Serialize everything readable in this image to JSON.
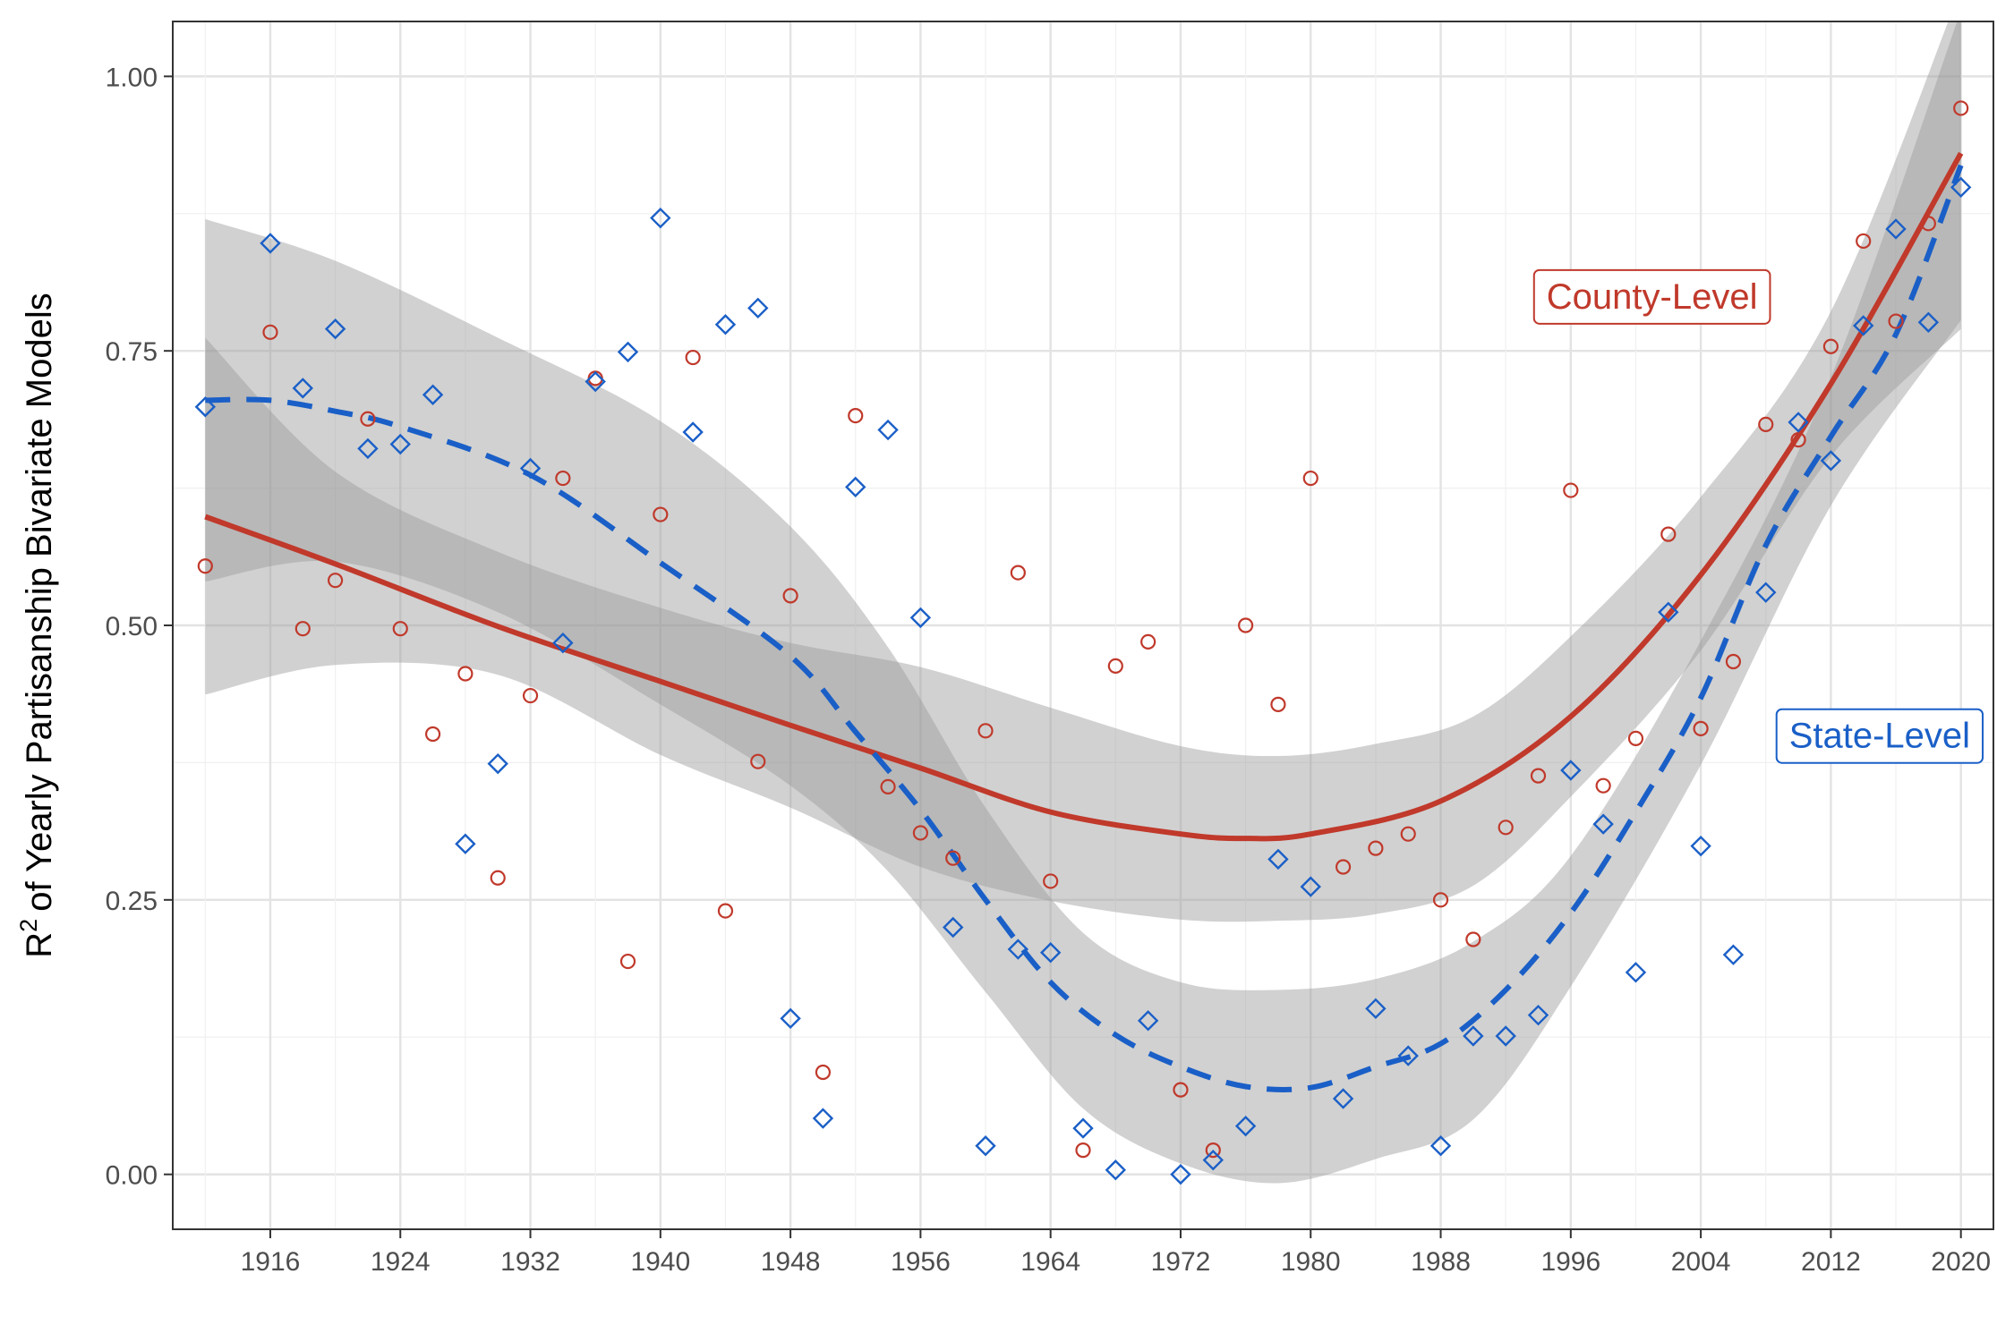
{
  "chart_data": {
    "type": "scatter",
    "title": "",
    "xlabel": "",
    "ylabel": "of Yearly Partisanship Bivariate Models",
    "ylabel_prefix": "R",
    "ylabel_superscript": "2",
    "xlim": [
      1910,
      2022
    ],
    "ylim": [
      -0.05,
      1.05
    ],
    "x_ticks": [
      1916,
      1924,
      1932,
      1940,
      1948,
      1956,
      1964,
      1972,
      1980,
      1988,
      1996,
      2004,
      2012,
      2020
    ],
    "x_tick_labels": [
      "1916",
      "1924",
      "1932",
      "1940",
      "1948",
      "1956",
      "1964",
      "1972",
      "1980",
      "1988",
      "1996",
      "2004",
      "2012",
      "2020"
    ],
    "y_ticks": [
      0,
      0.25,
      0.5,
      0.75,
      1.0
    ],
    "y_tick_labels": [
      "0.00",
      "0.25",
      "0.50",
      "0.75",
      "1.00"
    ],
    "grid": true,
    "legend": "none",
    "annotations": [
      {
        "text": "County-Level",
        "x": 2001,
        "y": 0.8,
        "color": "#c0392b"
      },
      {
        "text": "State-Level",
        "x": 2015,
        "y": 0.4,
        "color": "#1a5fc7"
      }
    ],
    "series": [
      {
        "id": "county",
        "color": "#c0392b",
        "marker": "circle",
        "line_style": "solid",
        "points": [
          [
            1912,
            0.554
          ],
          [
            1916,
            0.767
          ],
          [
            1918,
            0.497
          ],
          [
            1920,
            0.541
          ],
          [
            1922,
            0.688
          ],
          [
            1924,
            0.497
          ],
          [
            1926,
            0.401
          ],
          [
            1928,
            0.456
          ],
          [
            1930,
            0.27
          ],
          [
            1932,
            0.436
          ],
          [
            1934,
            0.634
          ],
          [
            1936,
            0.725
          ],
          [
            1938,
            0.194
          ],
          [
            1940,
            0.601
          ],
          [
            1942,
            0.744
          ],
          [
            1944,
            0.24
          ],
          [
            1946,
            0.376
          ],
          [
            1948,
            0.527
          ],
          [
            1950,
            0.093
          ],
          [
            1952,
            0.691
          ],
          [
            1954,
            0.353
          ],
          [
            1956,
            0.311
          ],
          [
            1958,
            0.288
          ],
          [
            1960,
            0.404
          ],
          [
            1962,
            0.548
          ],
          [
            1964,
            0.267
          ],
          [
            1966,
            0.022
          ],
          [
            1968,
            0.463
          ],
          [
            1970,
            0.485
          ],
          [
            1972,
            0.077
          ],
          [
            1974,
            0.022
          ],
          [
            1976,
            0.5
          ],
          [
            1978,
            0.428
          ],
          [
            1980,
            0.634
          ],
          [
            1982,
            0.28
          ],
          [
            1984,
            0.297
          ],
          [
            1986,
            0.31
          ],
          [
            1988,
            0.25
          ],
          [
            1990,
            0.214
          ],
          [
            1992,
            0.316
          ],
          [
            1994,
            0.363
          ],
          [
            1996,
            0.623
          ],
          [
            1998,
            0.354
          ],
          [
            2000,
            0.397
          ],
          [
            2002,
            0.583
          ],
          [
            2004,
            0.406
          ],
          [
            2006,
            0.467
          ],
          [
            2008,
            0.683
          ],
          [
            2010,
            0.669
          ],
          [
            2012,
            0.754
          ],
          [
            2014,
            0.85
          ],
          [
            2016,
            0.777
          ],
          [
            2018,
            0.866
          ],
          [
            2020,
            0.971
          ]
        ],
        "trend": [
          [
            1912,
            0.599
          ],
          [
            1920,
            0.556
          ],
          [
            1930,
            0.499
          ],
          [
            1940,
            0.449
          ],
          [
            1948,
            0.409
          ],
          [
            1956,
            0.37
          ],
          [
            1964,
            0.33
          ],
          [
            1972,
            0.31
          ],
          [
            1976,
            0.306
          ],
          [
            1980,
            0.31
          ],
          [
            1988,
            0.34
          ],
          [
            1996,
            0.417
          ],
          [
            2004,
            0.546
          ],
          [
            2012,
            0.72
          ],
          [
            2020,
            0.93
          ]
        ],
        "band_upper": [
          [
            1912,
            0.762
          ],
          [
            1920,
            0.64
          ],
          [
            1930,
            0.567
          ],
          [
            1940,
            0.516
          ],
          [
            1948,
            0.484
          ],
          [
            1956,
            0.462
          ],
          [
            1964,
            0.425
          ],
          [
            1972,
            0.39
          ],
          [
            1978,
            0.381
          ],
          [
            1984,
            0.392
          ],
          [
            1990,
            0.417
          ],
          [
            1996,
            0.49
          ],
          [
            2004,
            0.617
          ],
          [
            2012,
            0.786
          ],
          [
            2020,
            1.08
          ]
        ],
        "band_lower": [
          [
            1912,
            0.437
          ],
          [
            1920,
            0.464
          ],
          [
            1930,
            0.455
          ],
          [
            1940,
            0.382
          ],
          [
            1948,
            0.334
          ],
          [
            1956,
            0.28
          ],
          [
            1964,
            0.249
          ],
          [
            1972,
            0.232
          ],
          [
            1978,
            0.231
          ],
          [
            1984,
            0.237
          ],
          [
            1990,
            0.263
          ],
          [
            1996,
            0.344
          ],
          [
            2004,
            0.477
          ],
          [
            2012,
            0.654
          ],
          [
            2020,
            0.77
          ]
        ]
      },
      {
        "id": "state",
        "color": "#1a5fc7",
        "marker": "diamond",
        "line_style": "dashed",
        "points": [
          [
            1912,
            0.699
          ],
          [
            1916,
            0.848
          ],
          [
            1918,
            0.716
          ],
          [
            1920,
            0.77
          ],
          [
            1922,
            0.661
          ],
          [
            1924,
            0.665
          ],
          [
            1926,
            0.71
          ],
          [
            1928,
            0.301
          ],
          [
            1930,
            0.374
          ],
          [
            1932,
            0.643
          ],
          [
            1934,
            0.484
          ],
          [
            1936,
            0.722
          ],
          [
            1938,
            0.749
          ],
          [
            1940,
            0.871
          ],
          [
            1942,
            0.676
          ],
          [
            1944,
            0.774
          ],
          [
            1946,
            0.789
          ],
          [
            1948,
            0.142
          ],
          [
            1950,
            0.051
          ],
          [
            1952,
            0.626
          ],
          [
            1954,
            0.678
          ],
          [
            1956,
            0.507
          ],
          [
            1958,
            0.225
          ],
          [
            1960,
            0.026
          ],
          [
            1962,
            0.205
          ],
          [
            1964,
            0.202
          ],
          [
            1966,
            0.042
          ],
          [
            1968,
            0.004
          ],
          [
            1970,
            0.14
          ],
          [
            1972,
            0.0
          ],
          [
            1974,
            0.013
          ],
          [
            1976,
            0.044
          ],
          [
            1978,
            0.287
          ],
          [
            1980,
            0.262
          ],
          [
            1982,
            0.069
          ],
          [
            1984,
            0.151
          ],
          [
            1986,
            0.108
          ],
          [
            1988,
            0.026
          ],
          [
            1990,
            0.126
          ],
          [
            1992,
            0.126
          ],
          [
            1994,
            0.145
          ],
          [
            1996,
            0.368
          ],
          [
            1998,
            0.319
          ],
          [
            2000,
            0.184
          ],
          [
            2002,
            0.512
          ],
          [
            2004,
            0.299
          ],
          [
            2006,
            0.2
          ],
          [
            2008,
            0.53
          ],
          [
            2010,
            0.685
          ],
          [
            2012,
            0.65
          ],
          [
            2014,
            0.773
          ],
          [
            2016,
            0.861
          ],
          [
            2018,
            0.776
          ],
          [
            2020,
            0.899
          ]
        ],
        "trend": [
          [
            1912,
            0.705
          ],
          [
            1916,
            0.705
          ],
          [
            1920,
            0.695
          ],
          [
            1924,
            0.681
          ],
          [
            1932,
            0.637
          ],
          [
            1940,
            0.557
          ],
          [
            1948,
            0.472
          ],
          [
            1952,
            0.403
          ],
          [
            1956,
            0.332
          ],
          [
            1960,
            0.25
          ],
          [
            1964,
            0.175
          ],
          [
            1968,
            0.127
          ],
          [
            1972,
            0.098
          ],
          [
            1976,
            0.08
          ],
          [
            1980,
            0.079
          ],
          [
            1984,
            0.098
          ],
          [
            1988,
            0.119
          ],
          [
            1992,
            0.168
          ],
          [
            1996,
            0.238
          ],
          [
            2000,
            0.33
          ],
          [
            2004,
            0.434
          ],
          [
            2008,
            0.573
          ],
          [
            2012,
            0.672
          ],
          [
            2016,
            0.765
          ],
          [
            2020,
            0.919
          ]
        ],
        "band_upper": [
          [
            1912,
            0.87
          ],
          [
            1920,
            0.832
          ],
          [
            1930,
            0.762
          ],
          [
            1940,
            0.686
          ],
          [
            1948,
            0.59
          ],
          [
            1954,
            0.48
          ],
          [
            1960,
            0.334
          ],
          [
            1966,
            0.22
          ],
          [
            1972,
            0.175
          ],
          [
            1978,
            0.168
          ],
          [
            1984,
            0.178
          ],
          [
            1990,
            0.212
          ],
          [
            1996,
            0.29
          ],
          [
            2004,
            0.486
          ],
          [
            2012,
            0.726
          ],
          [
            2020,
            1.06
          ]
        ],
        "band_lower": [
          [
            1912,
            0.54
          ],
          [
            1920,
            0.558
          ],
          [
            1930,
            0.512
          ],
          [
            1940,
            0.428
          ],
          [
            1948,
            0.354
          ],
          [
            1954,
            0.276
          ],
          [
            1960,
            0.166
          ],
          [
            1966,
            0.06
          ],
          [
            1972,
            0.01
          ],
          [
            1978,
            -0.008
          ],
          [
            1984,
            0.014
          ],
          [
            1990,
            0.05
          ],
          [
            1996,
            0.171
          ],
          [
            2004,
            0.373
          ],
          [
            2012,
            0.609
          ],
          [
            2020,
            0.778
          ]
        ]
      }
    ]
  }
}
